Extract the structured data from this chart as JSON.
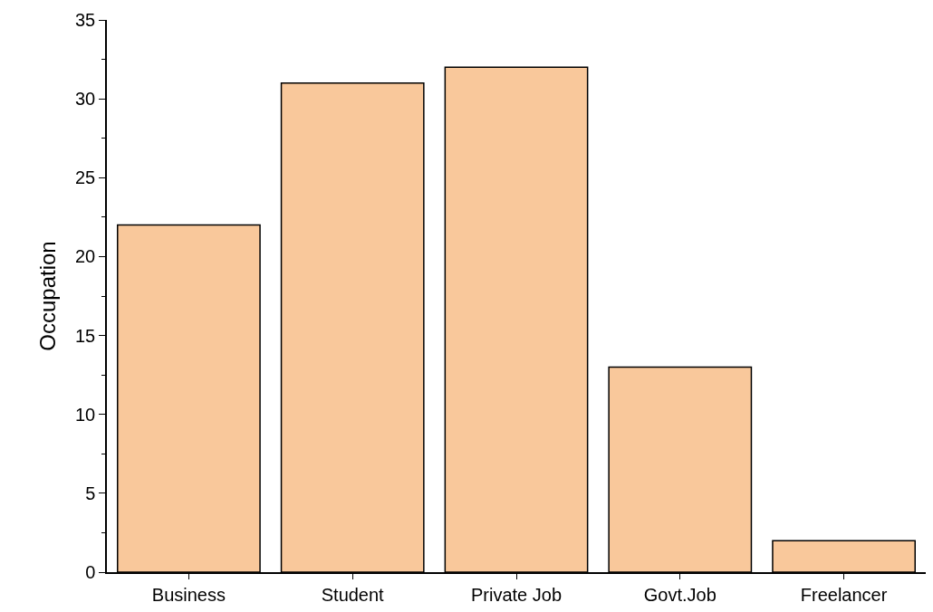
{
  "chart_data": {
    "type": "bar",
    "ylabel": "Occupation",
    "categories": [
      "Business",
      "Student",
      "Private Job",
      "Govt.Job",
      "Freelancer"
    ],
    "values": [
      22,
      31,
      32,
      13,
      2
    ],
    "color": "#f9c89b",
    "ylim": [
      0,
      35
    ],
    "yticks": [
      0,
      5,
      10,
      15,
      20,
      25,
      30,
      35
    ],
    "legend": false
  }
}
